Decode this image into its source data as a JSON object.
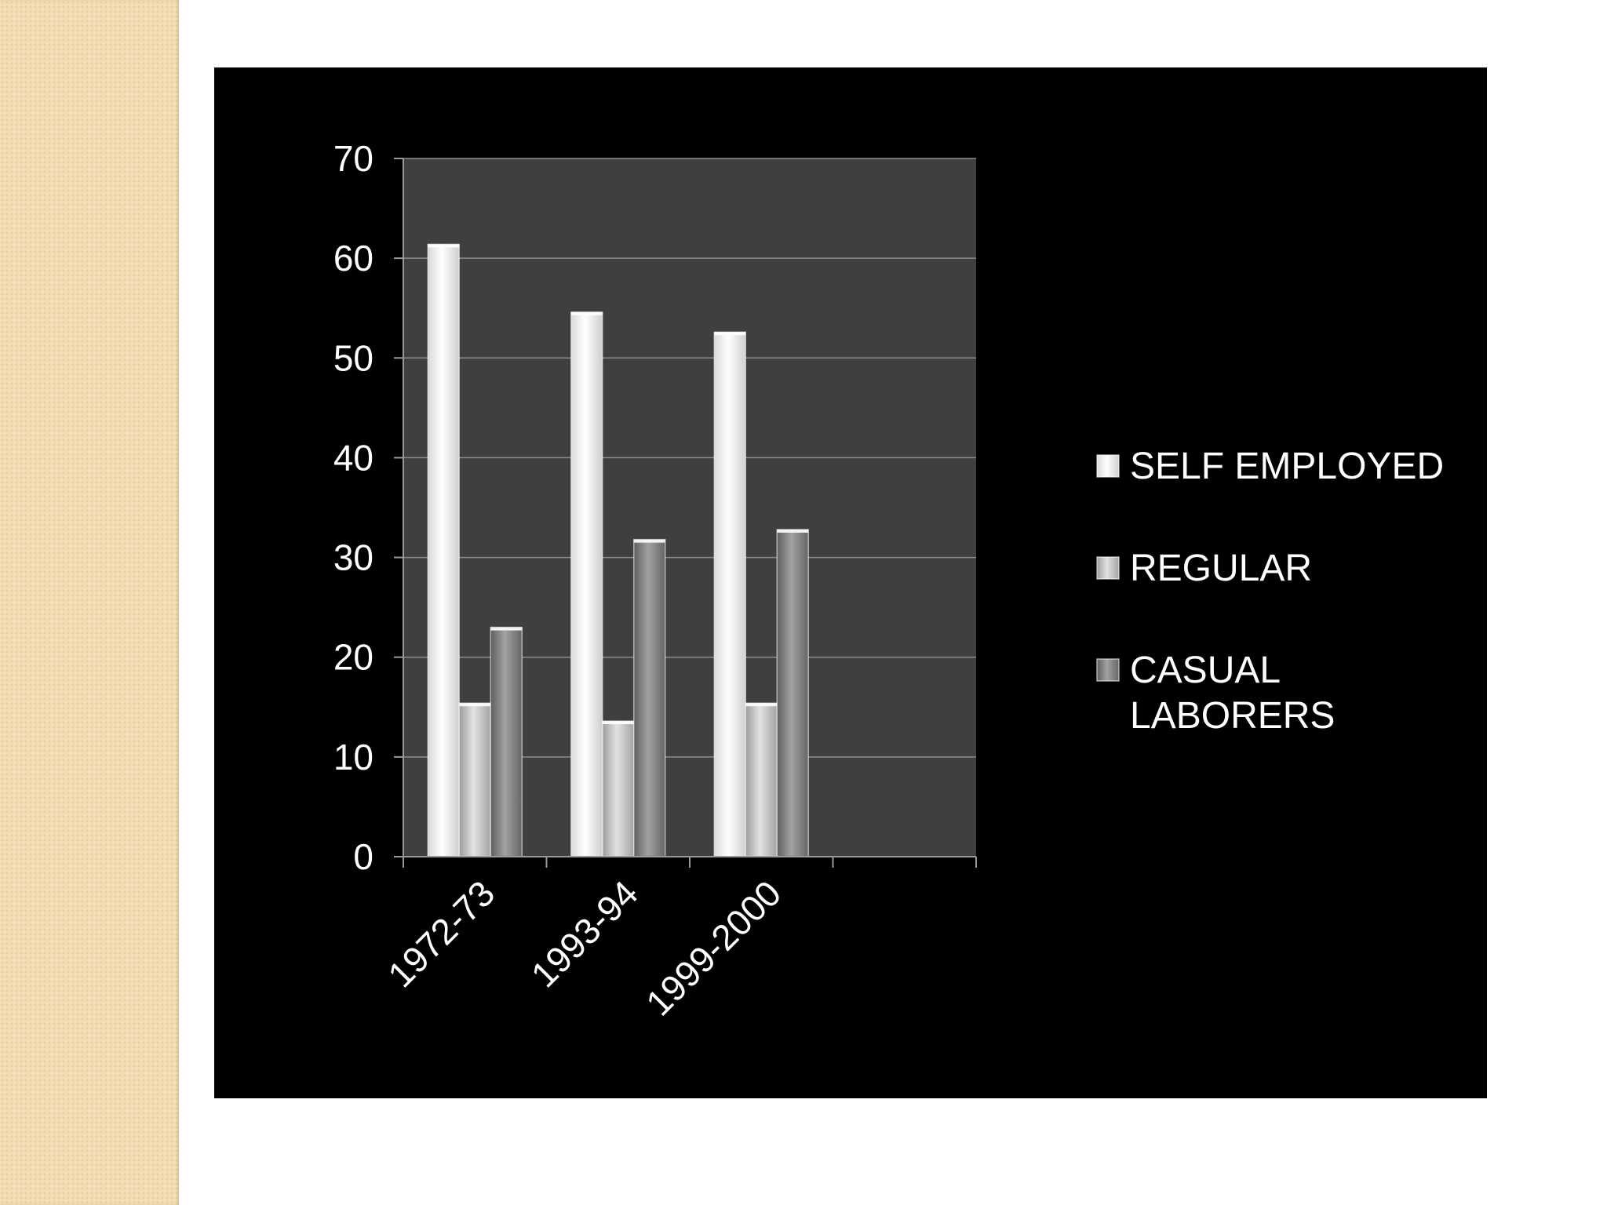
{
  "chart_data": {
    "type": "bar",
    "categories": [
      "1972-73",
      "1993-94",
      "1999-2000"
    ],
    "series": [
      {
        "name": "SELF EMPLOYED",
        "values": [
          61.4,
          54.6,
          52.6
        ],
        "color": "#f4f4f4"
      },
      {
        "name": "REGULAR",
        "values": [
          15.4,
          13.6,
          15.4
        ],
        "color": "#c8c8c8"
      },
      {
        "name": "CASUAL LABORERS",
        "values": [
          23.0,
          31.8,
          32.8
        ],
        "color": "#8a8a8a"
      }
    ],
    "yticks": [
      "0",
      "10",
      "20",
      "30",
      "40",
      "50",
      "60",
      "70"
    ],
    "ylim": [
      0,
      70
    ],
    "x_slots": 4,
    "title": "",
    "xlabel": "",
    "ylabel": "",
    "grid": true,
    "legend": "right",
    "plot_background": "#3f403e",
    "panel_background": "#000000"
  }
}
